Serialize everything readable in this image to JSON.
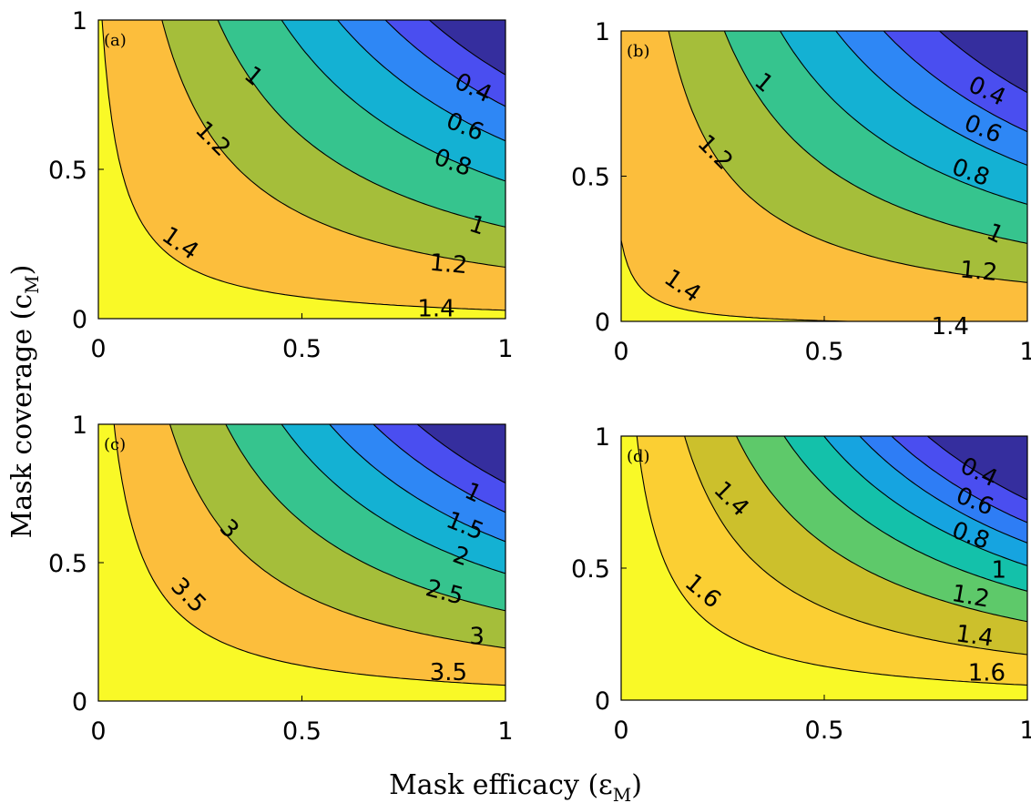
{
  "figure": {
    "xlabel": "Mask efficacy (ε",
    "xlabel_sub": "M",
    "xlabel_close": ")",
    "ylabel": "Mask coverage (c",
    "ylabel_sub": "M",
    "ylabel_close": ")"
  },
  "chart_data": [
    {
      "type": "contour",
      "panel_label": "(a)",
      "xlim": [
        0,
        1
      ],
      "ylim": [
        0,
        1
      ],
      "xticks": [
        "0",
        "0.5",
        "1"
      ],
      "yticks": [
        "0",
        "0.5",
        "1"
      ],
      "levels": [
        1.4,
        1.2,
        1.0,
        0.8,
        0.6,
        0.4,
        0.2
      ],
      "colors": [
        "#f9f927",
        "#fcbe3c",
        "#a5be3a",
        "#36c48e",
        "#14b1d3",
        "#2e87f5",
        "#4a4ef0",
        "#352e9e"
      ],
      "contour_labels": [
        "1",
        "1.2",
        "1.4",
        "0.4",
        "0.6",
        "0.8",
        "1",
        "1.2",
        "1.4"
      ]
    },
    {
      "type": "contour",
      "panel_label": "(b)",
      "xlim": [
        0,
        1
      ],
      "ylim": [
        0,
        1
      ],
      "xticks": [
        "0",
        "0.5",
        "1"
      ],
      "yticks": [
        "0",
        "0.5",
        "1"
      ],
      "levels": [
        1.4,
        1.2,
        1.0,
        0.8,
        0.6,
        0.4,
        0.2
      ],
      "colors": [
        "#f9f927",
        "#fcbe3c",
        "#a5be3a",
        "#36c48e",
        "#14b1d3",
        "#2e87f5",
        "#4a4ef0",
        "#352e9e"
      ],
      "contour_labels": [
        "1",
        "1.2",
        "1.4",
        "0.4",
        "0.6",
        "0.8",
        "1",
        "1.2",
        "1.4"
      ]
    },
    {
      "type": "contour",
      "panel_label": "(c)",
      "xlim": [
        0,
        1
      ],
      "ylim": [
        0,
        1
      ],
      "xticks": [
        "0",
        "0.5",
        "1"
      ],
      "yticks": [
        "0",
        "0.5",
        "1"
      ],
      "levels": [
        3.5,
        3.0,
        2.5,
        2.0,
        1.5,
        1.0,
        0.5
      ],
      "colors": [
        "#f9f927",
        "#fcbe3c",
        "#a5be3a",
        "#36c48e",
        "#14b1d3",
        "#2e87f5",
        "#4a4ef0",
        "#352e9e"
      ],
      "contour_labels": [
        "3",
        "3.5",
        "1",
        "1.5",
        "2",
        "2.5",
        "3",
        "3.5"
      ]
    },
    {
      "type": "contour",
      "panel_label": "(d)",
      "xlim": [
        0,
        1
      ],
      "ylim": [
        0,
        1
      ],
      "xticks": [
        "0",
        "0.5",
        "1"
      ],
      "yticks": [
        "0",
        "0.5",
        "1"
      ],
      "levels": [
        1.6,
        1.4,
        1.2,
        1.0,
        0.8,
        0.6,
        0.4,
        0.2
      ],
      "colors": [
        "#f9f927",
        "#fbcf33",
        "#ccc02c",
        "#5ec96a",
        "#14c1aa",
        "#16a4e0",
        "#2e7df5",
        "#4a4ef0",
        "#352e9e"
      ],
      "contour_labels": [
        "1.4",
        "1.6",
        "0.4",
        "0.6",
        "0.8",
        "1",
        "1.2",
        "1.4",
        "1.6"
      ]
    }
  ]
}
